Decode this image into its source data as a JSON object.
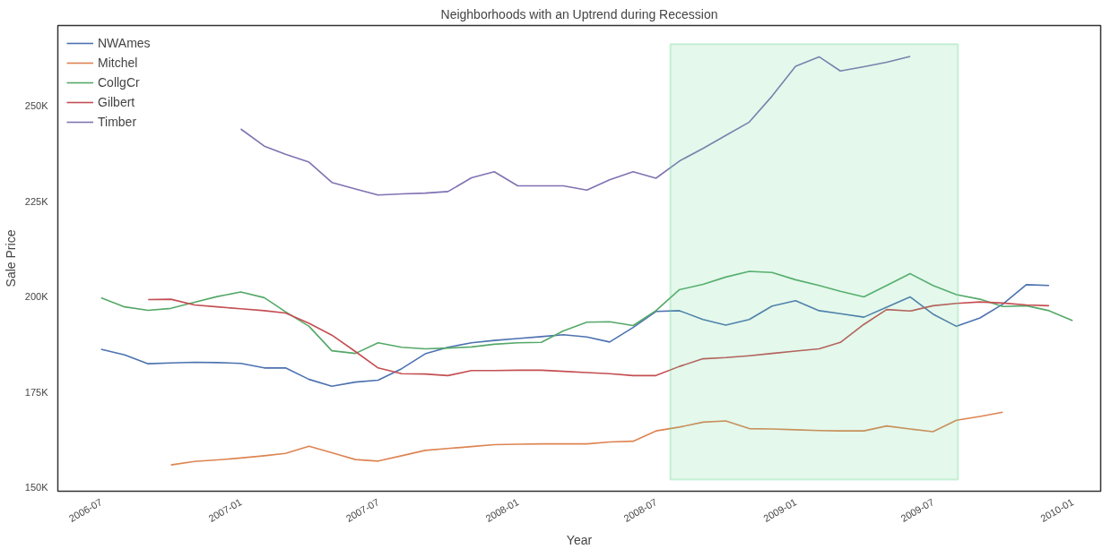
{
  "chart_data": {
    "type": "line",
    "title": "Neighborhoods with an Uptrend during Recession",
    "xlabel": "Year",
    "ylabel": "Sale Price",
    "x": [
      "2006-07",
      "2006-08",
      "2006-09",
      "2006-10",
      "2006-11",
      "2006-12",
      "2007-01",
      "2007-02",
      "2007-03",
      "2007-04",
      "2007-05",
      "2007-06",
      "2007-07",
      "2007-08",
      "2007-09",
      "2007-10",
      "2007-11",
      "2007-12",
      "2008-01",
      "2008-02",
      "2008-03",
      "2008-04",
      "2008-05",
      "2008-06",
      "2008-07",
      "2008-08",
      "2008-09",
      "2008-10",
      "2008-11",
      "2008-12",
      "2009-01",
      "2009-02",
      "2009-03",
      "2009-04",
      "2009-05",
      "2009-06",
      "2009-07",
      "2009-08",
      "2009-09",
      "2009-10",
      "2009-11",
      "2009-12",
      "2010-01"
    ],
    "series": [
      {
        "name": "NWAmes",
        "color": "#4c72b0",
        "values": [
          186200,
          184700,
          182400,
          182600,
          182800,
          182700,
          182500,
          181300,
          181300,
          178300,
          176500,
          177600,
          178100,
          181100,
          185000,
          186700,
          187900,
          188500,
          189000,
          189500,
          190000,
          189400,
          188100,
          191900,
          196100,
          196300,
          194000,
          192500,
          194000,
          197500,
          198900,
          196300,
          195500,
          194600,
          197200,
          199900,
          195400,
          192200,
          194400,
          198000,
          203100,
          202900,
          null
        ]
      },
      {
        "name": "Mitchel",
        "color": "#dd8452",
        "values": [
          null,
          null,
          null,
          155900,
          156800,
          157200,
          157700,
          158300,
          158900,
          160800,
          159100,
          157300,
          156900,
          158300,
          159700,
          160200,
          160700,
          161200,
          161300,
          161400,
          161400,
          161400,
          161900,
          162100,
          164800,
          165800,
          167100,
          167400,
          165400,
          165300,
          165100,
          164900,
          164800,
          164800,
          166100,
          165300,
          164600,
          167600,
          168600,
          169700,
          null,
          null,
          null
        ]
      },
      {
        "name": "CollgCr",
        "color": "#55a868",
        "values": [
          199700,
          197300,
          196400,
          196900,
          198500,
          200000,
          201200,
          199700,
          196000,
          192200,
          185800,
          185100,
          187900,
          186700,
          186300,
          186500,
          186800,
          187500,
          187900,
          188000,
          191000,
          193300,
          193400,
          192400,
          196300,
          201800,
          203200,
          205100,
          206600,
          206300,
          204400,
          202900,
          201400,
          199900,
          202900,
          206000,
          202900,
          200500,
          199300,
          197400,
          197600,
          196300,
          193700
        ]
      },
      {
        "name": "Gilbert",
        "color": "#c44e52",
        "values": [
          null,
          null,
          199200,
          199300,
          197800,
          197300,
          196800,
          196300,
          195700,
          193000,
          189900,
          185600,
          181300,
          179800,
          179700,
          179300,
          180600,
          180600,
          180700,
          180700,
          180400,
          180100,
          179800,
          179300,
          179300,
          181700,
          183700,
          184000,
          184500,
          185100,
          185700,
          186300,
          188000,
          192700,
          196600,
          196200,
          197600,
          198200,
          198600,
          198300,
          197800,
          197600,
          null
        ]
      },
      {
        "name": "Timber",
        "color": "#8172b3",
        "values": [
          null,
          null,
          null,
          null,
          null,
          null,
          243900,
          239400,
          237300,
          235200,
          229900,
          228200,
          226600,
          226900,
          227100,
          227500,
          231100,
          232700,
          229000,
          229000,
          229000,
          227900,
          230600,
          232700,
          231000,
          235500,
          238800,
          242200,
          245700,
          252500,
          260300,
          262800,
          259100,
          260200,
          261400,
          262900,
          null,
          null,
          null,
          null,
          null,
          null,
          null
        ]
      }
    ],
    "xlim": [
      "2006-05-05",
      "2010-02-07"
    ],
    "xticks": [
      "2006-07",
      "2007-01",
      "2007-07",
      "2008-01",
      "2008-07",
      "2009-01",
      "2009-07",
      "2010-01"
    ],
    "ylim": [
      149000,
      271000
    ],
    "yticks": [
      {
        "value": 150000,
        "label": "150K"
      },
      {
        "value": 175000,
        "label": "175K"
      },
      {
        "value": 200000,
        "label": "200K"
      },
      {
        "value": 225000,
        "label": "225K"
      },
      {
        "value": 250000,
        "label": "250K"
      }
    ],
    "bands": [
      {
        "axis": "x",
        "from": "2008-07-20",
        "to": "2009-08-03",
        "color": "#5fd38d"
      }
    ],
    "legend": "top left",
    "grid": false
  }
}
